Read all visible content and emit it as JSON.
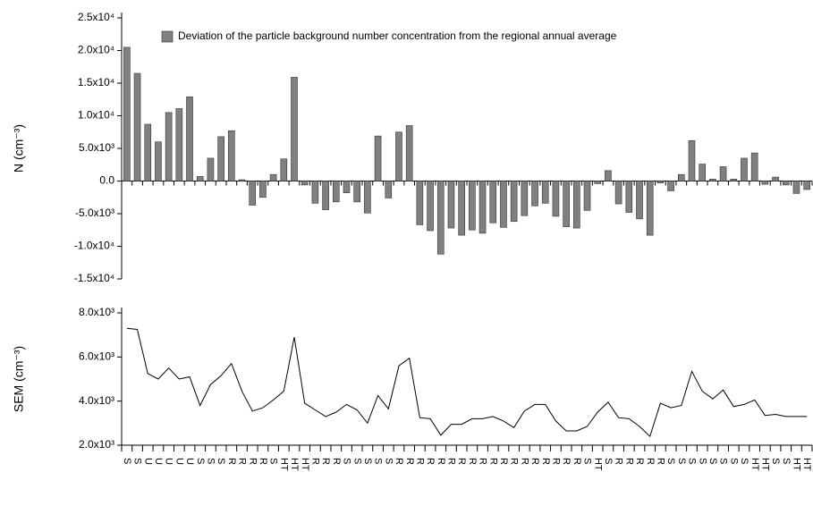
{
  "chart_data": [
    {
      "type": "bar",
      "y_label": "N (cm⁻³)",
      "categories": [
        "S",
        "S",
        "U",
        "U",
        "U",
        "U",
        "U",
        "S",
        "S",
        "S",
        "R",
        "R",
        "R",
        "R",
        "S",
        "HT",
        "HT",
        "HT",
        "R",
        "R",
        "R",
        "S",
        "S",
        "S",
        "S",
        "S",
        "R",
        "R",
        "R",
        "R",
        "R",
        "R",
        "R",
        "R",
        "R",
        "R",
        "R",
        "R",
        "R",
        "R",
        "R",
        "R",
        "R",
        "R",
        "S",
        "HT",
        "S",
        "R",
        "R",
        "R",
        "R",
        "R",
        "S",
        "S",
        "S",
        "S",
        "S",
        "S",
        "S",
        "S",
        "HT",
        "HT",
        "S",
        "S",
        "HT",
        "HT"
      ],
      "series": [
        {
          "name": "Deviation of the particle background number concentration from the regional annual average",
          "color": "#808080",
          "values": [
            20500,
            16500,
            8700,
            6000,
            10500,
            11100,
            12900,
            700,
            3500,
            6800,
            7700,
            200,
            -3700,
            -2500,
            1000,
            3400,
            15900,
            -600,
            -3400,
            -4400,
            -3200,
            -1800,
            -3200,
            -4900,
            6900,
            -2600,
            7500,
            8500,
            -6700,
            -7600,
            -11200,
            -7200,
            -8300,
            -7500,
            -8000,
            -6400,
            -7100,
            -6200,
            -5300,
            -3800,
            -3400,
            -5400,
            -7000,
            -7200,
            -4500,
            -400,
            1600,
            -3500,
            -4800,
            -5800,
            -8300,
            -300,
            -1500,
            1000,
            6200,
            2600,
            300,
            2200,
            300,
            3500,
            4300,
            -500,
            600,
            -600,
            -1900,
            -1300
          ]
        }
      ],
      "legend": "top",
      "ylim": [
        -15000,
        25000
      ],
      "yticks": [
        {
          "value": -15000,
          "label": "-1.5x10⁴"
        },
        {
          "value": -10000,
          "label": "-1.0x10⁴"
        },
        {
          "value": -5000,
          "label": "-5.0x10³"
        },
        {
          "value": 0,
          "label": "0.0"
        },
        {
          "value": 5000,
          "label": "5.0x10³"
        },
        {
          "value": 10000,
          "label": "1.0x10⁴"
        },
        {
          "value": 15000,
          "label": "1.5x10⁴"
        },
        {
          "value": 20000,
          "label": "2.0x10⁴"
        },
        {
          "value": 25000,
          "label": "2.5x10⁴"
        }
      ]
    },
    {
      "type": "line",
      "y_label": "SEM (cm⁻³)",
      "series": [
        {
          "color": "#000000",
          "values": [
            7300,
            7250,
            5250,
            5000,
            5500,
            5000,
            5100,
            3800,
            4750,
            5150,
            5700,
            4450,
            3550,
            3700,
            4050,
            4450,
            6900,
            3900,
            3600,
            3300,
            3500,
            3850,
            3600,
            3000,
            4250,
            3650,
            5600,
            5950,
            3250,
            3200,
            2450,
            2950,
            2950,
            3200,
            3200,
            3300,
            3100,
            2800,
            3550,
            3850,
            3850,
            3100,
            2650,
            2650,
            2850,
            3500,
            3950,
            3250,
            3200,
            2850,
            2400,
            3900,
            3700,
            3800,
            5350,
            4450,
            4100,
            4500,
            3750,
            3850,
            4050,
            3350,
            3400,
            3300,
            3300,
            3300
          ]
        }
      ],
      "ylim": [
        2000,
        8000
      ],
      "yticks": [
        {
          "value": 2000,
          "label": "2.0x10³"
        },
        {
          "value": 4000,
          "label": "4.0x10³"
        },
        {
          "value": 6000,
          "label": "6.0x10³"
        },
        {
          "value": 8000,
          "label": "8.0x10³"
        }
      ]
    }
  ]
}
